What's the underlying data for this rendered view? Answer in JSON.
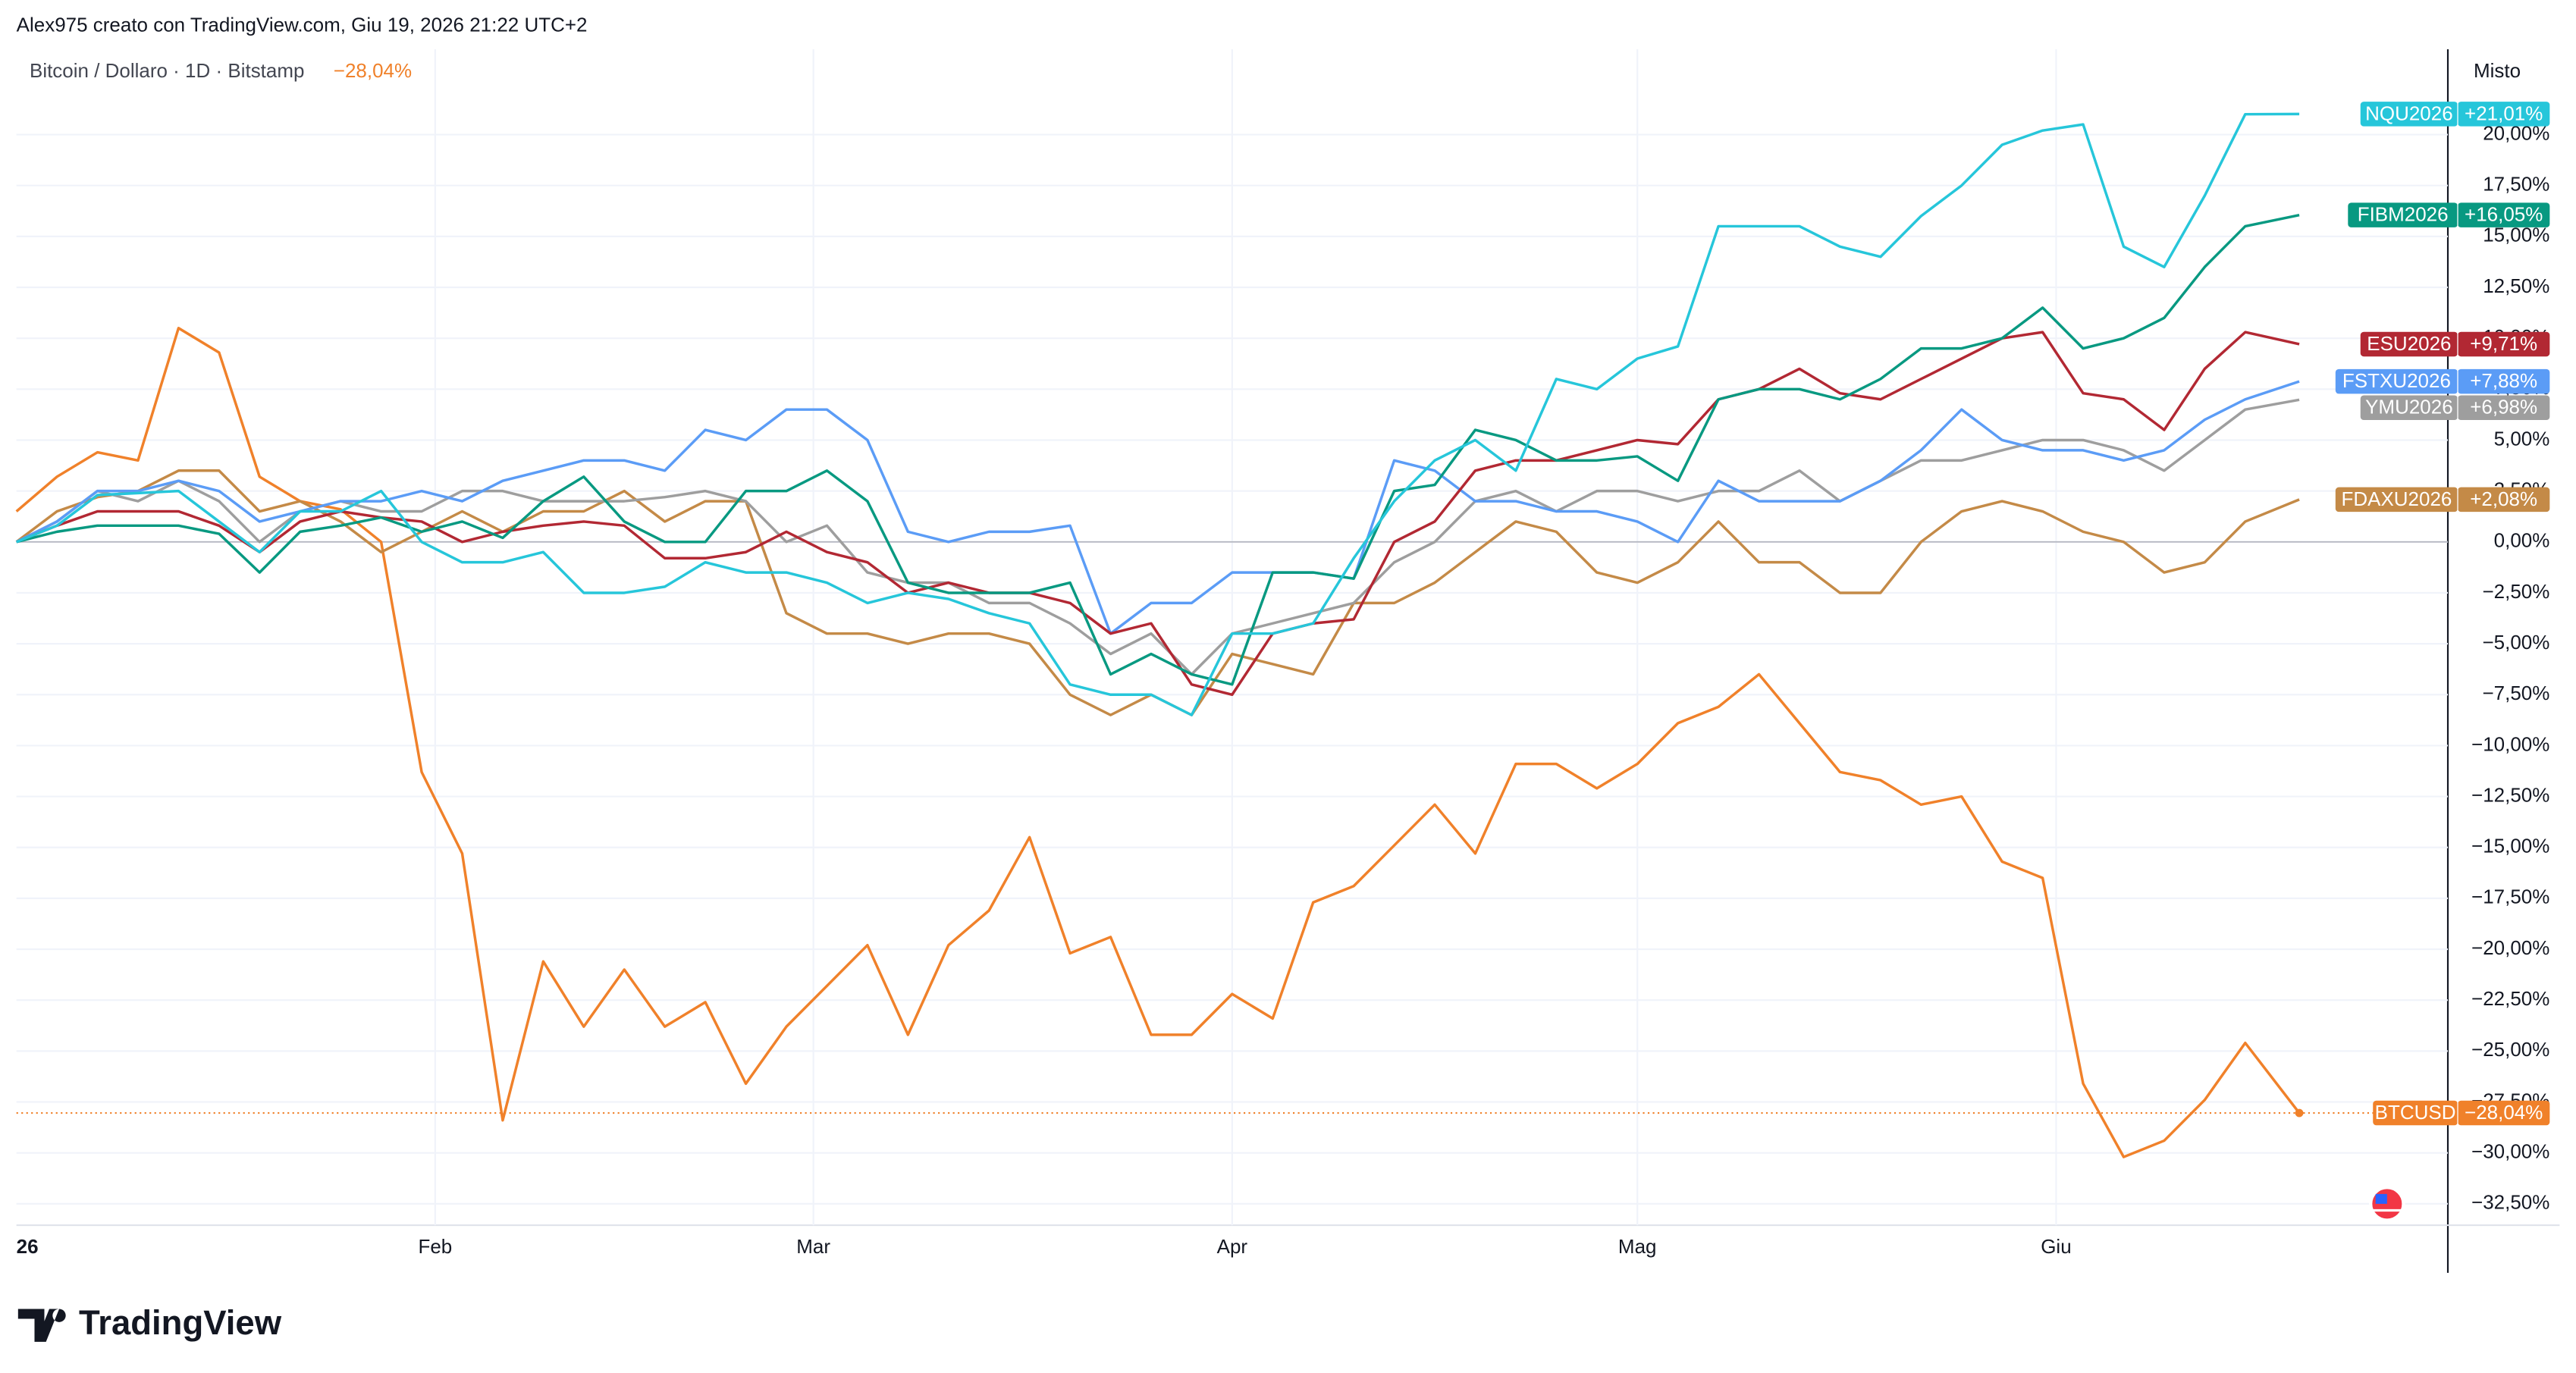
{
  "brand": "TradingView",
  "chart_data": {
    "type": "line",
    "title": "Alex975 creato con TradingView.com, Giu 19, 2026 21:22 UTC+2",
    "subtitle": "Bitcoin / Dollaro · 1D · Bitstamp",
    "scale_mode": "Misto",
    "x": [
      0,
      3,
      6,
      9,
      12,
      15,
      18,
      21,
      24,
      27,
      30,
      33,
      36,
      39,
      42,
      45,
      48,
      51,
      54,
      57,
      60,
      63,
      66,
      69,
      72,
      75,
      78,
      81,
      84,
      87,
      90,
      93,
      96,
      99,
      102,
      105,
      108,
      111,
      114,
      117,
      120,
      123,
      126,
      129,
      132,
      135,
      138,
      141,
      144,
      147,
      150,
      153,
      156,
      159,
      162,
      165,
      169
    ],
    "xlim": [
      0,
      180
    ],
    "xticks": [
      {
        "value": 0,
        "label": "26"
      },
      {
        "value": 31,
        "label": "Feb"
      },
      {
        "value": 59,
        "label": "Mar"
      },
      {
        "value": 90,
        "label": "Apr"
      },
      {
        "value": 120,
        "label": "Mag"
      },
      {
        "value": 151,
        "label": "Giu"
      }
    ],
    "ylim": [
      -33.55,
      24.19
    ],
    "yticks": [
      {
        "value": -32.5,
        "label": "−32,50%"
      },
      {
        "value": -30,
        "label": "−30,00%"
      },
      {
        "value": -27.5,
        "label": "−27,50%"
      },
      {
        "value": -25,
        "label": "−25,00%"
      },
      {
        "value": -22.5,
        "label": "−22,50%"
      },
      {
        "value": -20,
        "label": "−20,00%"
      },
      {
        "value": -17.5,
        "label": "−17,50%"
      },
      {
        "value": -15,
        "label": "−15,00%"
      },
      {
        "value": -12.5,
        "label": "−12,50%"
      },
      {
        "value": -10,
        "label": "−10,00%"
      },
      {
        "value": -7.5,
        "label": "−7,50%"
      },
      {
        "value": -5,
        "label": "−5,00%"
      },
      {
        "value": -2.5,
        "label": "−2,50%"
      },
      {
        "value": 0,
        "label": "0,00%"
      },
      {
        "value": 2.5,
        "label": "2,50%"
      },
      {
        "value": 5,
        "label": "5,00%"
      },
      {
        "value": 7.5,
        "label": "7,50%"
      },
      {
        "value": 10,
        "label": "10,00%"
      },
      {
        "value": 12.5,
        "label": "12,50%"
      },
      {
        "value": 15,
        "label": "15,00%"
      },
      {
        "value": 17.5,
        "label": "17,50%"
      },
      {
        "value": 20,
        "label": "20,00%"
      }
    ],
    "grid": true,
    "series": [
      {
        "name": "NQU2026",
        "color": "#26c6da",
        "values": [
          0,
          0.8,
          2.3,
          2.4,
          2.5,
          1.0,
          -0.5,
          1.5,
          1.5,
          2.5,
          0,
          -1,
          -1,
          -0.5,
          -2.5,
          -2.5,
          -2.2,
          -1.0,
          -1.5,
          -1.5,
          -2,
          -3,
          -2.5,
          -2.8,
          -3.5,
          -4,
          -7,
          -7.5,
          -7.5,
          -8.5,
          -4.5,
          -4.5,
          -4,
          -0.8,
          2,
          4,
          5,
          3.5,
          8,
          7.5,
          9,
          9.6,
          15.5,
          15.5,
          15.5,
          14.5,
          14,
          16,
          17.5,
          19.5,
          20.2,
          20.5,
          14.5,
          13.5,
          17,
          21,
          21.01
        ],
        "value_labels": [
          null,
          null,
          null,
          null,
          null,
          null,
          null,
          null,
          null,
          null,
          null,
          null,
          null,
          null,
          null,
          null,
          null,
          null,
          null,
          null,
          null,
          null,
          null,
          null,
          null,
          null,
          null,
          null,
          null,
          null,
          null,
          null,
          null,
          null,
          null,
          null,
          null,
          null,
          null,
          null,
          null,
          null,
          null,
          null,
          null,
          null,
          null,
          null,
          null,
          null,
          null,
          null,
          null,
          null,
          null,
          null,
          "+21,01%"
        ]
      },
      {
        "name": "FIBM2026",
        "color": "#089981",
        "values": [
          0,
          0.5,
          0.8,
          0.8,
          0.8,
          0.4,
          -1.5,
          0.5,
          0.8,
          1.2,
          0.5,
          1.0,
          0.2,
          2.0,
          3.2,
          1.0,
          0,
          0,
          2.5,
          2.5,
          3.5,
          2,
          -2,
          -2.5,
          -2.5,
          -2.5,
          -2,
          -6.5,
          -5.5,
          -6.5,
          -7,
          -1.5,
          -1.5,
          -1.8,
          2.5,
          2.8,
          5.5,
          5.0,
          4.0,
          4.0,
          4.2,
          3,
          7,
          7.5,
          7.5,
          7,
          8,
          9.5,
          9.5,
          10,
          11.5,
          9.5,
          10,
          11,
          13.5,
          15.5,
          16.05
        ],
        "value_labels": [
          null,
          null,
          null,
          null,
          null,
          null,
          null,
          null,
          null,
          null,
          null,
          null,
          null,
          null,
          null,
          null,
          null,
          null,
          null,
          null,
          null,
          null,
          null,
          null,
          null,
          null,
          null,
          null,
          null,
          null,
          null,
          null,
          null,
          null,
          null,
          null,
          null,
          null,
          null,
          null,
          null,
          null,
          null,
          null,
          null,
          null,
          null,
          null,
          null,
          null,
          null,
          null,
          null,
          null,
          null,
          null,
          "+16,05%"
        ]
      },
      {
        "name": "ESU2026",
        "color": "#b22833",
        "values": [
          0,
          0.8,
          1.5,
          1.5,
          1.5,
          0.8,
          -0.5,
          1.0,
          1.5,
          1.2,
          1.0,
          0,
          0.5,
          0.8,
          1.0,
          0.8,
          -0.8,
          -0.8,
          -0.5,
          0.5,
          -0.5,
          -1,
          -2.5,
          -2,
          -2.5,
          -2.5,
          -3,
          -4.5,
          -4,
          -7,
          -7.5,
          -4.5,
          -4,
          -3.8,
          0,
          1,
          3.5,
          4,
          4,
          4.5,
          5,
          4.8,
          7,
          7.5,
          8.5,
          7.3,
          7,
          8,
          9,
          10,
          10.3,
          7.3,
          7,
          5.5,
          8.5,
          10.3,
          9.71
        ],
        "value_labels": [
          null,
          null,
          null,
          null,
          null,
          null,
          null,
          null,
          null,
          null,
          null,
          null,
          null,
          null,
          null,
          null,
          null,
          null,
          null,
          null,
          null,
          null,
          null,
          null,
          null,
          null,
          null,
          null,
          null,
          null,
          null,
          null,
          null,
          null,
          null,
          null,
          null,
          null,
          null,
          null,
          null,
          null,
          null,
          null,
          null,
          null,
          null,
          null,
          null,
          null,
          null,
          null,
          null,
          null,
          null,
          null,
          "+9,71%"
        ]
      },
      {
        "name": "FSTXU2026",
        "color": "#5b9cf6",
        "values": [
          0,
          1.0,
          2.5,
          2.5,
          3,
          2.5,
          1,
          1.5,
          2,
          2,
          2.5,
          2,
          3,
          3.5,
          4,
          4,
          3.5,
          5.5,
          5,
          6.5,
          6.5,
          5,
          0.5,
          0,
          0.5,
          0.5,
          0.8,
          -4.5,
          -3,
          -3,
          -1.5,
          -1.5,
          -1.5,
          -1.8,
          4,
          3.5,
          2,
          2,
          1.5,
          1.5,
          1,
          0,
          3,
          2,
          2,
          2,
          3,
          4.5,
          6.5,
          5,
          4.5,
          4.5,
          4,
          4.5,
          6,
          7,
          7.88
        ],
        "value_labels": [
          null,
          null,
          null,
          null,
          null,
          null,
          null,
          null,
          null,
          null,
          null,
          null,
          null,
          null,
          null,
          null,
          null,
          null,
          null,
          null,
          null,
          null,
          null,
          null,
          null,
          null,
          null,
          null,
          null,
          null,
          null,
          null,
          null,
          null,
          null,
          null,
          null,
          null,
          null,
          null,
          null,
          null,
          null,
          null,
          null,
          null,
          null,
          null,
          null,
          null,
          null,
          null,
          null,
          null,
          null,
          null,
          "+7,88%"
        ]
      },
      {
        "name": "YMU2026",
        "color": "#9e9e9e",
        "values": [
          0,
          1,
          2.5,
          2,
          3,
          2,
          0,
          1.5,
          2,
          1.5,
          1.5,
          2.5,
          2.5,
          2,
          2,
          2,
          2.2,
          2.5,
          2,
          0,
          0.8,
          -1.5,
          -2,
          -2,
          -3,
          -3,
          -4,
          -5.5,
          -4.5,
          -6.5,
          -4.5,
          -4,
          -3.5,
          -3,
          -1,
          0,
          2,
          2.5,
          1.5,
          2.5,
          2.5,
          2,
          2.5,
          2.5,
          3.5,
          2,
          3,
          4,
          4,
          4.5,
          5,
          5,
          4.5,
          3.5,
          5,
          6.5,
          6.98
        ],
        "value_labels": [
          null,
          null,
          null,
          null,
          null,
          null,
          null,
          null,
          null,
          null,
          null,
          null,
          null,
          null,
          null,
          null,
          null,
          null,
          null,
          null,
          null,
          null,
          null,
          null,
          null,
          null,
          null,
          null,
          null,
          null,
          null,
          null,
          null,
          null,
          null,
          null,
          null,
          null,
          null,
          null,
          null,
          null,
          null,
          null,
          null,
          null,
          null,
          null,
          null,
          null,
          null,
          null,
          null,
          null,
          null,
          null,
          "+6,98%"
        ]
      },
      {
        "name": "FDAXU2026",
        "color": "#c48a47",
        "values": [
          0,
          1.5,
          2.2,
          2.5,
          3.5,
          3.5,
          1.5,
          2.0,
          1.0,
          -0.5,
          0.5,
          1.5,
          0.5,
          1.5,
          1.5,
          2.5,
          1,
          2,
          2,
          -3.5,
          -4.5,
          -4.5,
          -5,
          -4.5,
          -4.5,
          -5,
          -7.5,
          -8.5,
          -7.5,
          -8.5,
          -5.5,
          -6,
          -6.5,
          -3,
          -3,
          -2,
          -0.5,
          1,
          0.5,
          -1.5,
          -2,
          -1,
          1,
          -1,
          -1,
          -2.5,
          -2.5,
          0,
          1.5,
          2,
          1.5,
          0.5,
          0,
          -1.5,
          -1,
          1,
          2.08
        ],
        "value_labels": [
          null,
          null,
          null,
          null,
          null,
          null,
          null,
          null,
          null,
          null,
          null,
          null,
          null,
          null,
          null,
          null,
          null,
          null,
          null,
          null,
          null,
          null,
          null,
          null,
          null,
          null,
          null,
          null,
          null,
          null,
          null,
          null,
          null,
          null,
          null,
          null,
          null,
          null,
          null,
          null,
          null,
          null,
          null,
          null,
          null,
          null,
          null,
          null,
          null,
          null,
          null,
          null,
          null,
          null,
          null,
          null,
          "+2,08%"
        ]
      },
      {
        "name": "BTCUSD",
        "color": "#f0812a",
        "values": [
          1.5,
          3.2,
          4.4,
          4,
          10.5,
          9.3,
          3.2,
          2,
          1.6,
          0,
          -11.3,
          -15.3,
          -28.4,
          -20.6,
          -23.8,
          -21,
          -23.8,
          -22.6,
          -26.6,
          -23.8,
          -21.8,
          -19.8,
          -24.2,
          -19.8,
          -18.1,
          -14.5,
          -20.2,
          -19.4,
          -24.2,
          -24.2,
          -22.2,
          -23.4,
          -17.7,
          -16.9,
          -14.9,
          -12.9,
          -15.3,
          -10.9,
          -10.9,
          -12.1,
          -10.9,
          -8.9,
          -8.1,
          -6.5,
          -8.9,
          -11.3,
          -11.7,
          -12.9,
          -12.5,
          -15.7,
          -16.5,
          -26.6,
          -30.2,
          -29.4,
          -27.4,
          -24.6,
          -28.04
        ],
        "value_labels": [
          null,
          null,
          null,
          null,
          null,
          null,
          null,
          null,
          null,
          null,
          null,
          null,
          null,
          null,
          null,
          null,
          null,
          null,
          null,
          null,
          null,
          null,
          null,
          null,
          null,
          null,
          null,
          null,
          null,
          null,
          null,
          null,
          null,
          null,
          null,
          null,
          null,
          null,
          null,
          null,
          null,
          null,
          null,
          null,
          null,
          null,
          null,
          null,
          null,
          null,
          null,
          null,
          null,
          null,
          null,
          null,
          "−28,04%"
        ]
      }
    ]
  }
}
